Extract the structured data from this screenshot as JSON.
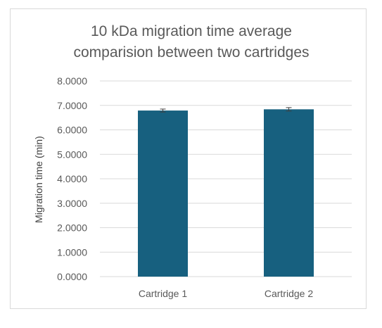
{
  "chart_data": {
    "type": "bar",
    "title_lines": [
      "10 kDa migration time average",
      "comparision between two cartridges"
    ],
    "xlabel": "",
    "ylabel": "Migration time (min)",
    "categories": [
      "Cartridge 1",
      "Cartridge 2"
    ],
    "values": [
      6.79,
      6.84
    ],
    "errors": [
      0.06,
      0.07
    ],
    "ylim": [
      0,
      8
    ],
    "yticks": [
      "0.0000",
      "1.0000",
      "2.0000",
      "3.0000",
      "4.0000",
      "5.0000",
      "6.0000",
      "7.0000",
      "8.0000"
    ],
    "grid": true,
    "bar_color": "#17607f"
  }
}
